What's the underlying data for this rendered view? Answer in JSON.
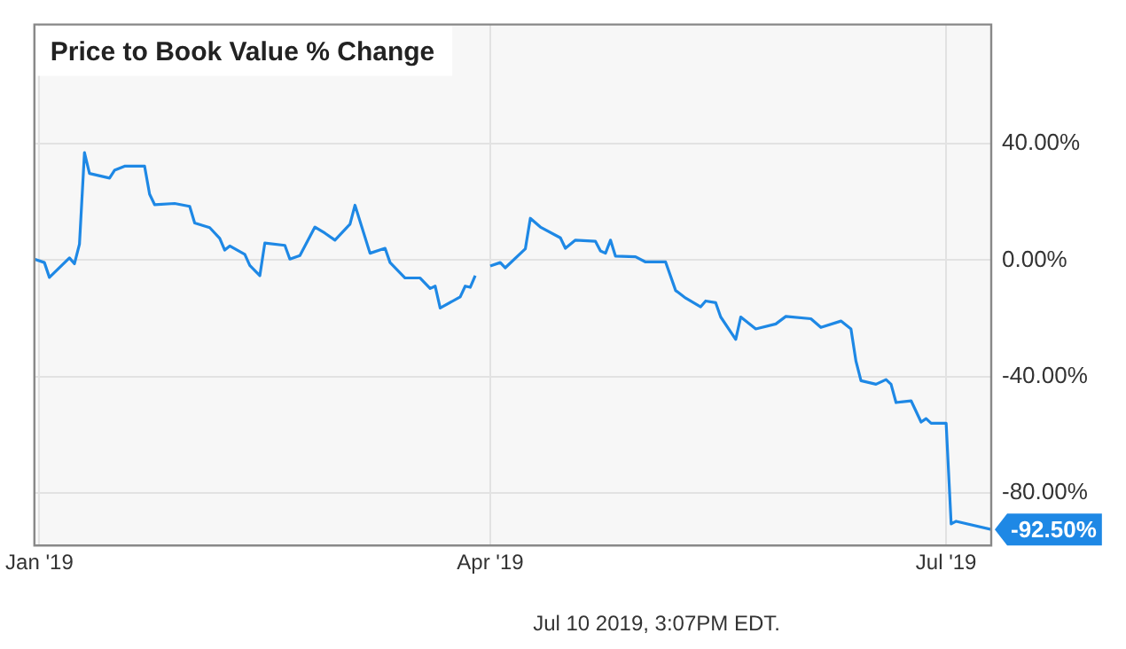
{
  "chart_data": {
    "type": "line",
    "title": "Price to Book Value % Change",
    "x": [
      "2018-12-31",
      "2019-01-02",
      "2019-01-03",
      "2019-01-07",
      "2019-01-08",
      "2019-01-09",
      "2019-01-10",
      "2019-01-11",
      "2019-01-15",
      "2019-01-16",
      "2019-01-18",
      "2019-01-22",
      "2019-01-23",
      "2019-01-24",
      "2019-01-28",
      "2019-01-31",
      "2019-02-01",
      "2019-02-04",
      "2019-02-06",
      "2019-02-07",
      "2019-02-08",
      "2019-02-11",
      "2019-02-12",
      "2019-02-14",
      "2019-02-15",
      "2019-02-19",
      "2019-02-20",
      "2019-02-22",
      "2019-02-25",
      "2019-02-27",
      "2019-03-01",
      "2019-03-04",
      "2019-03-05",
      "2019-03-08",
      "2019-03-11",
      "2019-03-12",
      "2019-03-15",
      "2019-03-18",
      "2019-03-20",
      "2019-03-21",
      "2019-03-22",
      "2019-03-26",
      "2019-03-27",
      "2019-03-28",
      "2019-03-29",
      "2019-03-31",
      "2019-04-01",
      "2019-04-03",
      "2019-04-04",
      "2019-04-08",
      "2019-04-09",
      "2019-04-11",
      "2019-04-15",
      "2019-04-16",
      "2019-04-18",
      "2019-04-22",
      "2019-04-23",
      "2019-04-24",
      "2019-04-25",
      "2019-04-26",
      "2019-04-30",
      "2019-05-02",
      "2019-05-06",
      "2019-05-08",
      "2019-05-10",
      "2019-05-13",
      "2019-05-14",
      "2019-05-16",
      "2019-05-17",
      "2019-05-20",
      "2019-05-21",
      "2019-05-24",
      "2019-05-28",
      "2019-05-30",
      "2019-06-04",
      "2019-06-06",
      "2019-06-10",
      "2019-06-12",
      "2019-06-13",
      "2019-06-14",
      "2019-06-17",
      "2019-06-19",
      "2019-06-20",
      "2019-06-21",
      "2019-06-24",
      "2019-06-26",
      "2019-06-27",
      "2019-06-28",
      "2019-07-01",
      "2019-07-02",
      "2019-07-03",
      "2019-07-10"
    ],
    "series": [
      {
        "color": "#1e88e5",
        "values": [
          0.4,
          -0.8,
          -5.9,
          0.8,
          -1.2,
          5.5,
          37,
          29.8,
          28.2,
          30.9,
          32.3,
          32.3,
          22.7,
          19.1,
          19.5,
          18.5,
          12.8,
          11.2,
          7.5,
          3.5,
          4.9,
          2,
          -1.8,
          -5.3,
          5.9,
          5.1,
          0.4,
          1.6,
          11.4,
          9.3,
          6.9,
          12.4,
          18.9,
          2.4,
          4.1,
          -0.8,
          -6.1,
          -6.1,
          -9.7,
          -8.9,
          -16.4,
          -12.6,
          -8.9,
          -9.3,
          -5.3,
          null,
          -2,
          -0.8,
          -2.6,
          3.9,
          14.4,
          11.4,
          7.7,
          4.1,
          6.9,
          6.5,
          3.2,
          2.4,
          6.9,
          1.4,
          1.2,
          -0.6,
          -0.6,
          -10.4,
          -13,
          -16,
          -14,
          -14.6,
          -19.5,
          -27.2,
          -19.5,
          -23.6,
          -21.9,
          -19.3,
          -20.1,
          -23.1,
          -20.9,
          -23.6,
          -34.7,
          -41.4,
          -42.6,
          -41,
          -42.6,
          -48.9,
          -48.3,
          -55.6,
          -54.4,
          -56,
          -56,
          -90.6,
          -89.7,
          -92.5
        ]
      }
    ],
    "xlim": [
      "2018-12-31",
      "2019-07-10"
    ],
    "xticks": [
      {
        "value": "2019-01-01",
        "label": "Jan '19"
      },
      {
        "value": "2019-04-01",
        "label": "Apr '19"
      },
      {
        "value": "2019-07-01",
        "label": "Jul '19"
      }
    ],
    "ylim": [
      -98,
      81
    ],
    "yticks": [
      {
        "value": -80,
        "label": "-80.00%"
      },
      {
        "value": -40,
        "label": "-40.00%"
      },
      {
        "value": 0,
        "label": "0.00%"
      },
      {
        "value": 40,
        "label": "40.00%"
      }
    ],
    "grid": true,
    "legend": false,
    "marker": "none",
    "line_style": "solid",
    "annotations": [
      {
        "text": "-92.50%",
        "x": "2019-07-10",
        "y": -92.5
      },
      "Jul 10 2019, 3:07PM EDT."
    ]
  }
}
